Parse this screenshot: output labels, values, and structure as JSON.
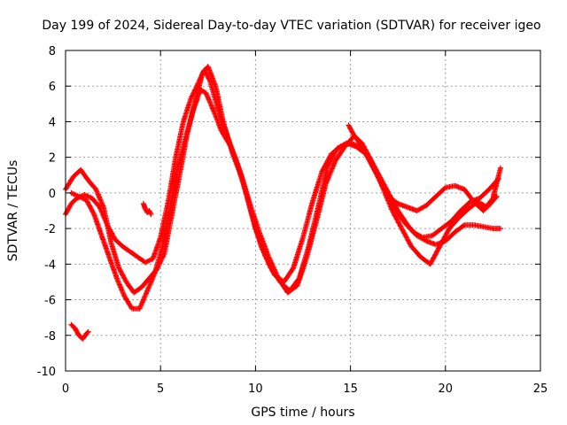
{
  "chart_data": {
    "type": "scatter",
    "title": "Day 199 of 2024, Sidereal Day-to-day VTEC variation (SDTVAR) for receiver igeo",
    "xlabel": "GPS time / hours",
    "ylabel": "SDTVAR / TECUs",
    "xlim": [
      0,
      25
    ],
    "ylim": [
      -10,
      8
    ],
    "x_ticks": [
      0,
      5,
      10,
      15,
      20,
      25
    ],
    "y_ticks": [
      -10,
      -8,
      -6,
      -4,
      -2,
      0,
      2,
      4,
      6,
      8
    ],
    "x_tick_labels": [
      "0",
      "5",
      "10",
      "15",
      "20",
      "25"
    ],
    "y_tick_labels": [
      "-10",
      "-8",
      "-6",
      "-4",
      "-2",
      "0",
      "2",
      "4",
      "6",
      "8"
    ],
    "grid": true,
    "marker": "+",
    "color": "#ff0000",
    "series": [
      {
        "name": "trace-1",
        "x": [
          0.0,
          0.3,
          0.6,
          1.0,
          1.4,
          1.8,
          2.2,
          2.6,
          3.0,
          3.4,
          3.8,
          4.2,
          4.6,
          5.0,
          5.4,
          5.8,
          6.2,
          6.6,
          7.0,
          7.3,
          7.6,
          8.0,
          8.5,
          9.0,
          9.5,
          10.0,
          10.5,
          11.0,
          11.5,
          12.0,
          12.5,
          13.0,
          13.5,
          14.0,
          14.5,
          15.0,
          15.5,
          16.0,
          16.5,
          17.0,
          17.5,
          18.0,
          18.5,
          19.0,
          19.5,
          20.0,
          20.5,
          21.0,
          21.5,
          22.0,
          22.5,
          22.9
        ],
        "y": [
          -1.2,
          -0.6,
          -0.3,
          -0.1,
          -0.3,
          -0.8,
          -1.8,
          -2.6,
          -3.0,
          -3.3,
          -3.6,
          -3.9,
          -3.7,
          -2.5,
          -0.5,
          2.0,
          4.0,
          5.3,
          6.2,
          6.9,
          6.3,
          4.8,
          3.2,
          1.8,
          0.0,
          -2.0,
          -3.5,
          -4.6,
          -5.0,
          -4.2,
          -2.5,
          -0.5,
          1.2,
          2.2,
          2.6,
          2.8,
          2.6,
          2.0,
          0.8,
          -0.2,
          -0.6,
          -0.8,
          -1.0,
          -0.7,
          -0.2,
          0.3,
          0.4,
          0.2,
          -0.5,
          -1.0,
          -0.3,
          1.4
        ]
      },
      {
        "name": "trace-2",
        "x": [
          0.0,
          0.4,
          0.8,
          1.2,
          1.6,
          2.0,
          2.4,
          2.8,
          3.2,
          3.6,
          4.0,
          4.4,
          4.8,
          5.2,
          5.6,
          6.0,
          6.4,
          6.8,
          7.2,
          7.5,
          7.9,
          8.3,
          8.8,
          9.3,
          9.8,
          10.3,
          10.8,
          11.3,
          11.8,
          12.3,
          12.8,
          13.3,
          13.8,
          14.3,
          14.8,
          15.3,
          15.8,
          16.3,
          16.8,
          17.3,
          17.8,
          18.3,
          18.8,
          19.3,
          19.8,
          20.3,
          20.8,
          21.3,
          21.8,
          22.3,
          22.8
        ],
        "y": [
          0.2,
          0.9,
          1.3,
          0.7,
          0.2,
          -0.8,
          -2.8,
          -4.2,
          -5.0,
          -5.6,
          -5.3,
          -4.8,
          -4.3,
          -3.4,
          -1.2,
          1.0,
          3.3,
          5.0,
          6.7,
          7.1,
          6.0,
          4.0,
          2.2,
          0.8,
          -1.2,
          -3.0,
          -4.2,
          -5.0,
          -5.5,
          -4.8,
          -3.0,
          -0.8,
          1.5,
          2.5,
          2.8,
          2.6,
          2.2,
          1.2,
          0.2,
          -0.8,
          -1.6,
          -2.2,
          -2.5,
          -2.4,
          -2.0,
          -1.6,
          -1.0,
          -0.5,
          -0.3,
          0.2,
          0.8
        ]
      },
      {
        "name": "trace-3",
        "x": [
          0.3,
          0.7,
          1.1,
          1.5,
          1.9,
          2.3,
          2.7,
          3.1,
          3.5,
          3.9,
          4.3,
          4.7,
          5.1,
          5.5,
          5.9,
          6.3,
          6.7,
          7.1,
          7.4,
          7.8,
          8.2,
          8.7,
          9.2,
          9.7,
          10.2,
          10.7,
          11.2,
          11.7,
          12.2,
          12.7,
          13.2,
          13.7,
          14.2,
          14.7,
          15.2,
          15.7,
          16.2,
          16.7,
          17.2,
          17.7,
          18.2,
          18.7,
          19.2,
          19.7,
          20.2,
          20.7,
          21.2,
          21.7,
          22.2,
          22.7
        ],
        "y": [
          0.0,
          -0.2,
          -0.4,
          -1.2,
          -2.4,
          -3.6,
          -4.8,
          -5.8,
          -6.5,
          -6.5,
          -5.5,
          -4.5,
          -3.0,
          -0.8,
          1.4,
          3.0,
          4.6,
          5.8,
          5.6,
          4.6,
          3.5,
          2.6,
          1.2,
          -0.6,
          -2.2,
          -3.6,
          -4.8,
          -5.6,
          -5.2,
          -3.6,
          -1.6,
          0.5,
          1.8,
          2.6,
          3.2,
          2.5,
          1.5,
          0.3,
          -1.0,
          -2.0,
          -3.0,
          -3.6,
          -4.0,
          -3.0,
          -2.0,
          -1.4,
          -0.9,
          -0.5,
          -0.8,
          -0.2
        ]
      },
      {
        "name": "trace-4",
        "x": [
          14.9,
          15.2,
          15.6,
          16.0,
          16.5,
          17.0,
          17.5,
          18.0,
          18.5,
          19.0,
          19.5,
          20.0,
          20.5,
          21.0,
          21.5,
          22.0,
          22.5,
          22.9
        ],
        "y": [
          3.8,
          3.2,
          2.8,
          2.0,
          1.0,
          0.0,
          -1.0,
          -1.8,
          -2.4,
          -2.7,
          -2.9,
          -2.7,
          -2.2,
          -1.8,
          -1.8,
          -1.9,
          -2.0,
          -2.0
        ]
      },
      {
        "name": "trace-5",
        "x": [
          0.3,
          0.5,
          0.7,
          0.9,
          1.1,
          1.2
        ],
        "y": [
          -7.4,
          -7.6,
          -8.0,
          -8.2,
          -7.9,
          -7.8
        ]
      },
      {
        "name": "trace-6",
        "x": [
          4.1,
          4.2,
          4.3,
          4.4,
          4.5
        ],
        "y": [
          -0.6,
          -0.9,
          -1.1,
          -1.0,
          -1.2
        ]
      }
    ]
  }
}
